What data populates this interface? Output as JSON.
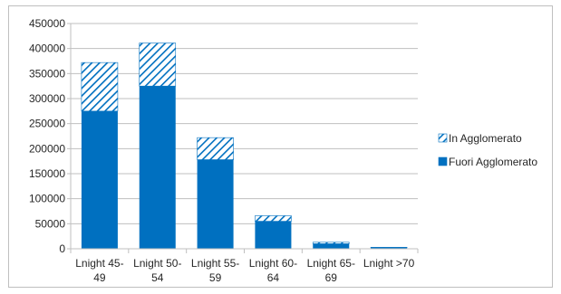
{
  "chart_data": {
    "type": "bar",
    "stacked": true,
    "categories": [
      [
        "Lnight 45-",
        "49"
      ],
      [
        "Lnight 50-",
        "54"
      ],
      [
        "Lnight 55-",
        "59"
      ],
      [
        "Lnight 60-",
        "64"
      ],
      [
        "Lnight 65-",
        "69"
      ],
      [
        "Lnight >70"
      ]
    ],
    "series": [
      {
        "name": "Fuori Agglomerato",
        "values": [
          275000,
          325000,
          178000,
          55000,
          10000,
          2000
        ],
        "color": "#0070C0",
        "pattern": "solid"
      },
      {
        "name": "In Agglomerato",
        "values": [
          97000,
          86000,
          44000,
          11000,
          3000,
          1000
        ],
        "color": "#0070C0",
        "pattern": "diagonal-hatch"
      }
    ],
    "title": "",
    "xlabel": "",
    "ylabel": "",
    "ylim": [
      0,
      450000
    ],
    "yticks": [
      0,
      50000,
      100000,
      150000,
      200000,
      250000,
      300000,
      350000,
      400000,
      450000
    ],
    "grid": true,
    "legend_position": "right",
    "legend_order": [
      "In Agglomerato",
      "Fuori Agglomerato"
    ]
  }
}
